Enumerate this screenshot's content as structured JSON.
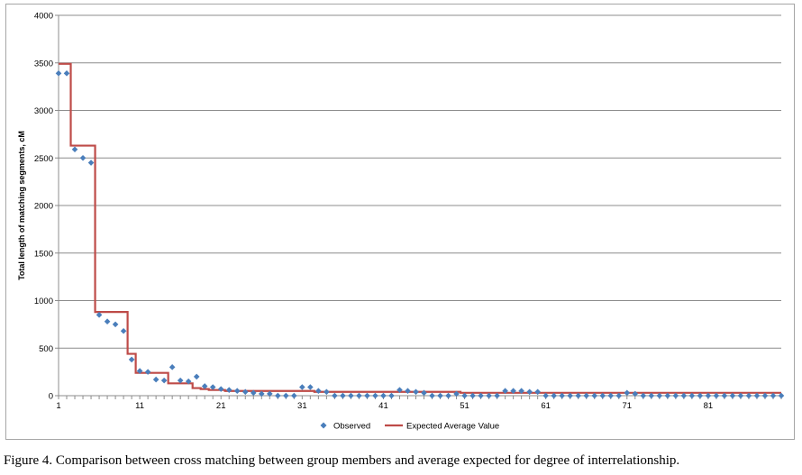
{
  "caption": "Figure 4.  Comparison between cross matching between group members and average expected for degree of interrelationship.",
  "chart_data": {
    "type": "scatter",
    "title": "",
    "xlabel": "",
    "ylabel": "Total length of matching segments, cM",
    "xlim": [
      1,
      90
    ],
    "ylim": [
      0,
      4000
    ],
    "x_ticks": [
      1,
      11,
      21,
      31,
      41,
      51,
      61,
      71,
      81
    ],
    "y_ticks": [
      0,
      500,
      1000,
      1500,
      2000,
      2500,
      3000,
      3500,
      4000
    ],
    "grid": "horizontal",
    "legend_position": "bottom",
    "colors": {
      "observed": "#4a7ebb",
      "expected": "#be4b48",
      "grid": "#8c8c8c"
    },
    "series": [
      {
        "name": "Observed",
        "kind": "scatter",
        "values": [
          3390,
          3390,
          2590,
          2500,
          2450,
          850,
          780,
          750,
          680,
          380,
          260,
          250,
          170,
          160,
          300,
          160,
          150,
          200,
          100,
          90,
          70,
          60,
          50,
          40,
          30,
          20,
          20,
          0,
          0,
          0,
          90,
          90,
          50,
          40,
          0,
          0,
          0,
          0,
          0,
          0,
          0,
          0,
          60,
          50,
          40,
          30,
          0,
          0,
          0,
          20,
          0,
          0,
          0,
          0,
          0,
          50,
          50,
          50,
          40,
          40,
          0,
          0,
          0,
          0,
          0,
          0,
          0,
          0,
          0,
          0,
          30,
          20,
          0,
          0,
          0,
          0,
          0,
          0,
          0,
          0,
          0,
          0,
          0,
          0,
          0,
          0,
          0,
          0,
          0,
          0
        ]
      },
      {
        "name": "Expected Average Value",
        "kind": "line",
        "values": [
          3490,
          3490,
          2630,
          2630,
          2630,
          880,
          880,
          880,
          880,
          440,
          240,
          240,
          240,
          240,
          130,
          130,
          130,
          80,
          70,
          60,
          60,
          50,
          50,
          50,
          50,
          50,
          50,
          50,
          50,
          50,
          50,
          50,
          40,
          40,
          40,
          40,
          40,
          40,
          40,
          40,
          40,
          40,
          40,
          40,
          40,
          40,
          40,
          40,
          40,
          40,
          30,
          30,
          30,
          30,
          30,
          30,
          30,
          30,
          30,
          30,
          30,
          30,
          30,
          30,
          30,
          30,
          30,
          30,
          30,
          30,
          30,
          30,
          30,
          30,
          30,
          30,
          30,
          30,
          30,
          30,
          30,
          30,
          30,
          30,
          30,
          30,
          30,
          30,
          30,
          30
        ]
      }
    ]
  }
}
